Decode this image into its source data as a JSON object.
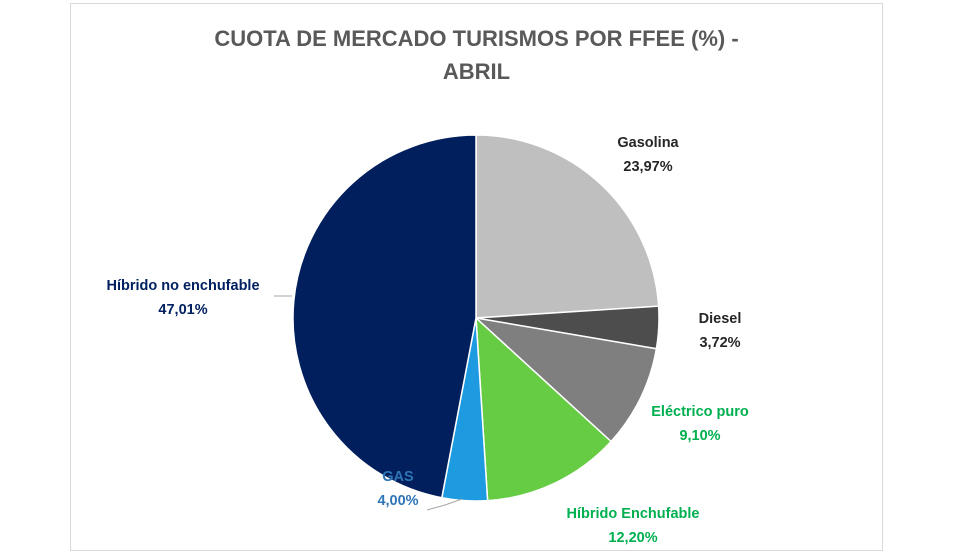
{
  "chart_data": {
    "type": "pie",
    "title_line1": "CUOTA DE MERCADO TURISMOS POR FFEE (%) -",
    "title_line2": "ABRIL",
    "slices": [
      {
        "label": "Gasolina",
        "value": 23.97,
        "value_text": "23,97%",
        "color": "#bfbfbf",
        "label_color": "#262626"
      },
      {
        "label": "Diesel",
        "value": 3.72,
        "value_text": "3,72%",
        "color": "#4d4d4d",
        "label_color": "#262626"
      },
      {
        "label": "Eléctrico puro",
        "value": 9.1,
        "value_text": "9,10%",
        "color": "#7f7f7f",
        "label_color": "#00b050"
      },
      {
        "label": "Híbrido Enchufable",
        "value": 12.2,
        "value_text": "12,20%",
        "color": "#66cc44",
        "label_color": "#00b050"
      },
      {
        "label": "GAS",
        "value": 4.0,
        "value_text": "4,00%",
        "color": "#1e9be0",
        "label_color": "#2e75b6"
      },
      {
        "label": "Híbrido no enchufable",
        "value": 47.01,
        "value_text": "47,01%",
        "color": "#001f5c",
        "label_color": "#002060"
      }
    ],
    "legend": "none"
  }
}
